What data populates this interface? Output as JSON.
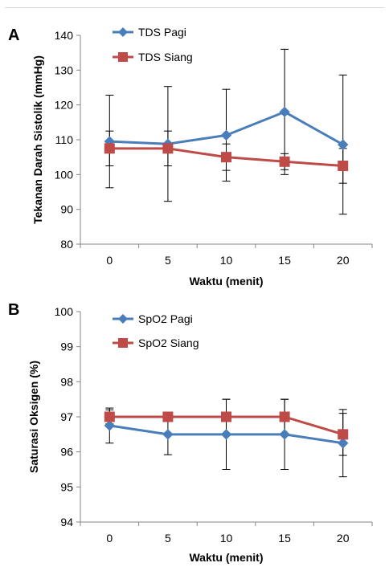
{
  "chart_data": [
    {
      "panel_label": "A",
      "type": "line",
      "x": [
        0,
        5,
        10,
        15,
        20
      ],
      "series": [
        {
          "name": "TDS Pagi",
          "color": "#4a7ebb",
          "marker": "diamond",
          "values": [
            109.5,
            108.8,
            111.3,
            118.0,
            108.6
          ],
          "error": [
            13.3,
            16.5,
            13.2,
            18.0,
            20.0
          ]
        },
        {
          "name": "TDS Siang",
          "color": "#be4b48",
          "marker": "square",
          "values": [
            107.5,
            107.5,
            105.0,
            103.7,
            102.5
          ],
          "error": [
            5.0,
            5.0,
            3.8,
            2.3,
            5.0
          ]
        }
      ],
      "xlabel": "Waktu (menit)",
      "ylabel": "Tekanan Darah Sistolik (mmHg)",
      "ylim": [
        80,
        140
      ],
      "yticks": [
        80,
        90,
        100,
        110,
        120,
        130,
        140
      ],
      "grid": false,
      "legend": "top-left"
    },
    {
      "panel_label": "B",
      "type": "line",
      "x": [
        0,
        5,
        10,
        15,
        20
      ],
      "series": [
        {
          "name": "SpO2 Pagi",
          "color": "#4a7ebb",
          "marker": "diamond",
          "values": [
            96.75,
            96.5,
            96.5,
            96.5,
            96.25
          ],
          "error": [
            0.5,
            0.58,
            1.0,
            1.0,
            0.96
          ]
        },
        {
          "name": "SpO2 Siang",
          "color": "#be4b48",
          "marker": "square",
          "values": [
            97.0,
            97.0,
            97.0,
            97.0,
            96.5
          ],
          "error": [
            0.2,
            0.0,
            0.5,
            0.5,
            0.6
          ]
        }
      ],
      "xlabel": "Waktu (menit)",
      "ylabel": "Saturasi Oksigen (%)",
      "ylim": [
        94,
        100
      ],
      "yticks": [
        94,
        95,
        96,
        97,
        98,
        99,
        100
      ],
      "grid": false,
      "legend": "top-left"
    }
  ]
}
